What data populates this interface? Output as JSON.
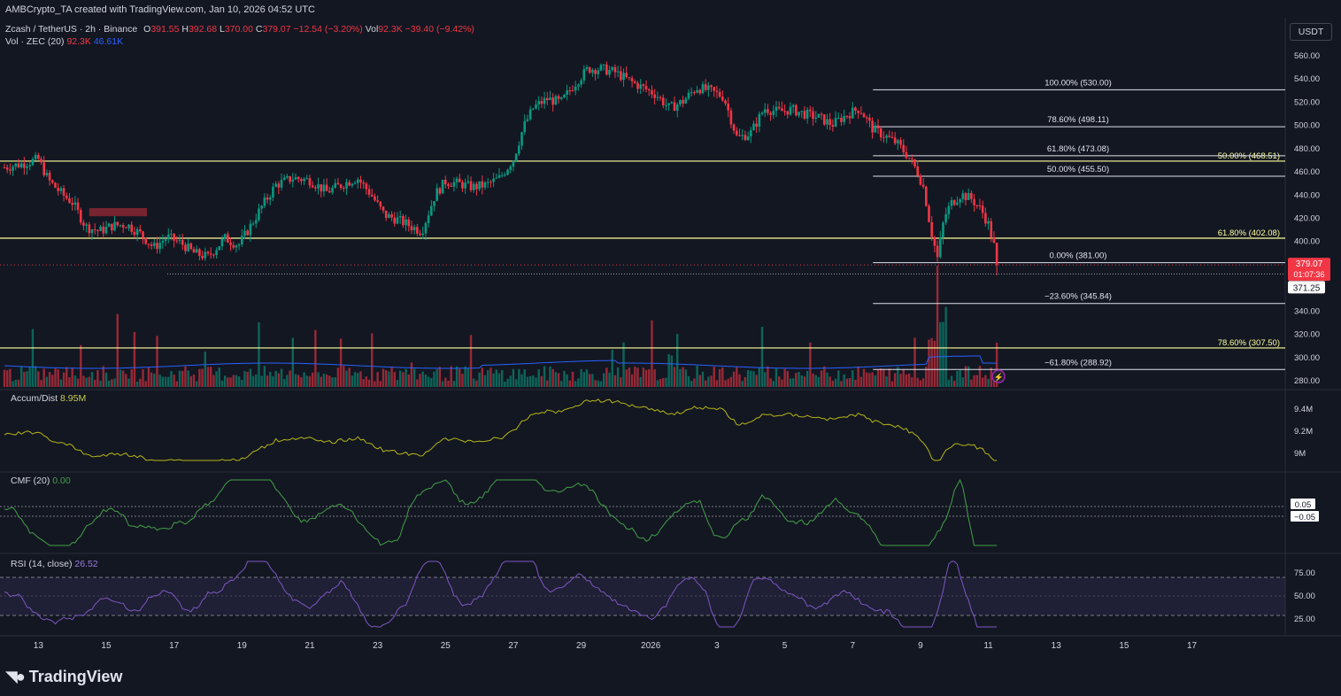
{
  "header": {
    "watermark": "AMBCrypto_TA created with TradingView.com, Jan 10, 2026 04:52 UTC",
    "symbol": "Zcash / TetherUS · 2h · Binance",
    "ohlc": [
      {
        "label": "O",
        "value": "391.55"
      },
      {
        "label": "H",
        "value": "392.68"
      },
      {
        "label": "L",
        "value": "370.00"
      },
      {
        "label": "C",
        "value": "379.07"
      }
    ],
    "change": "−12.54 (−3.20%)",
    "vol_label": "Vol",
    "vol_value": "92.3K",
    "vol_change": "−39.40 (−9.42%)",
    "vol_ma_label": "Vol · ZEC (20)",
    "vol_ma_value1": "92.3K",
    "vol_ma_value2": "46.61K"
  },
  "currency_button": "USDT",
  "branding": "TradingView",
  "colors": {
    "background": "#131722",
    "up": "#089981",
    "down": "#f23645",
    "fib_white": "#e0e3eb",
    "fib_yellow": "#ffff99",
    "volume_ma": "#2962ff",
    "accum_dist": "#b5b517",
    "cmf": "#43a047",
    "rsi": "#7e57c2",
    "price_label": "#f23645"
  },
  "chart_data": {
    "type": "candlestick",
    "symbol": "ZEC/USDT",
    "interval": "2h",
    "exchange": "Binance",
    "x_tick_labels": [
      "13",
      "15",
      "17",
      "19",
      "21",
      "23",
      "25",
      "27",
      "29",
      "2026",
      "3",
      "5",
      "7",
      "9",
      "11",
      "13",
      "15",
      "17"
    ],
    "price_axis": {
      "ticks": [
        "560.00",
        "540.00",
        "520.00",
        "500.00",
        "480.00",
        "460.00",
        "440.00",
        "420.00",
        "400.00",
        "380.00",
        "360.00",
        "340.00",
        "320.00",
        "300.00",
        "280.00"
      ],
      "range": [
        275,
        568
      ]
    },
    "price_anchors": [
      {
        "day": 12.0,
        "price": 463
      },
      {
        "day": 12.5,
        "price": 466
      },
      {
        "day": 13.0,
        "price": 470
      },
      {
        "day": 13.3,
        "price": 452
      },
      {
        "day": 13.7,
        "price": 440
      },
      {
        "day": 14.0,
        "price": 433
      },
      {
        "day": 14.4,
        "price": 412
      },
      {
        "day": 14.8,
        "price": 408
      },
      {
        "day": 15.2,
        "price": 413
      },
      {
        "day": 15.6,
        "price": 414
      },
      {
        "day": 16.0,
        "price": 406
      },
      {
        "day": 16.4,
        "price": 394
      },
      {
        "day": 16.8,
        "price": 403
      },
      {
        "day": 17.2,
        "price": 398
      },
      {
        "day": 17.6,
        "price": 389
      },
      {
        "day": 18.0,
        "price": 386
      },
      {
        "day": 18.5,
        "price": 402
      },
      {
        "day": 18.9,
        "price": 396
      },
      {
        "day": 19.2,
        "price": 410
      },
      {
        "day": 19.6,
        "price": 430
      },
      {
        "day": 20.0,
        "price": 448
      },
      {
        "day": 20.5,
        "price": 454
      },
      {
        "day": 21.0,
        "price": 452
      },
      {
        "day": 21.5,
        "price": 442
      },
      {
        "day": 22.0,
        "price": 449
      },
      {
        "day": 22.4,
        "price": 454
      },
      {
        "day": 22.8,
        "price": 440
      },
      {
        "day": 23.2,
        "price": 422
      },
      {
        "day": 23.6,
        "price": 418
      },
      {
        "day": 24.0,
        "price": 412
      },
      {
        "day": 24.3,
        "price": 408
      },
      {
        "day": 24.7,
        "price": 440
      },
      {
        "day": 25.0,
        "price": 451
      },
      {
        "day": 25.4,
        "price": 449
      },
      {
        "day": 25.8,
        "price": 446
      },
      {
        "day": 26.2,
        "price": 448
      },
      {
        "day": 26.6,
        "price": 454
      },
      {
        "day": 27.0,
        "price": 470
      },
      {
        "day": 27.3,
        "price": 498
      },
      {
        "day": 27.6,
        "price": 515
      },
      {
        "day": 28.0,
        "price": 522
      },
      {
        "day": 28.4,
        "price": 519
      },
      {
        "day": 28.8,
        "price": 535
      },
      {
        "day": 29.2,
        "price": 548
      },
      {
        "day": 29.6,
        "price": 548
      },
      {
        "day": 30.0,
        "price": 545
      },
      {
        "day": 30.4,
        "price": 538
      },
      {
        "day": 30.8,
        "price": 532
      },
      {
        "day": 31.2,
        "price": 526
      },
      {
        "day": 31.6,
        "price": 514
      },
      {
        "day": 32.0,
        "price": 520
      },
      {
        "day": 32.4,
        "price": 532
      },
      {
        "day": 32.8,
        "price": 529
      },
      {
        "day": 33.2,
        "price": 524
      },
      {
        "day": 33.6,
        "price": 488
      },
      {
        "day": 34.0,
        "price": 493
      },
      {
        "day": 34.4,
        "price": 514
      },
      {
        "day": 34.8,
        "price": 511
      },
      {
        "day": 35.2,
        "price": 513
      },
      {
        "day": 35.6,
        "price": 509
      },
      {
        "day": 36.0,
        "price": 506
      },
      {
        "day": 36.4,
        "price": 500
      },
      {
        "day": 36.8,
        "price": 508
      },
      {
        "day": 37.2,
        "price": 514
      },
      {
        "day": 37.6,
        "price": 496
      },
      {
        "day": 37.9,
        "price": 491
      },
      {
        "day": 38.3,
        "price": 484
      },
      {
        "day": 38.6,
        "price": 474
      },
      {
        "day": 38.9,
        "price": 460
      },
      {
        "day": 39.1,
        "price": 445
      },
      {
        "day": 39.3,
        "price": 410
      },
      {
        "day": 39.5,
        "price": 385
      },
      {
        "day": 39.7,
        "price": 420
      },
      {
        "day": 39.9,
        "price": 432
      },
      {
        "day": 40.2,
        "price": 440
      },
      {
        "day": 40.5,
        "price": 436
      },
      {
        "day": 40.8,
        "price": 426
      },
      {
        "day": 41.0,
        "price": 414
      },
      {
        "day": 41.2,
        "price": 392
      },
      {
        "day": 41.3,
        "price": 379
      }
    ],
    "last_price": "379.07",
    "last_price_countdown": "01:07:36",
    "marked_level": "371.25",
    "fib_retracement_recent": [
      {
        "label": "100.00% (530.00)",
        "price": 530.0
      },
      {
        "label": "78.60% (498.11)",
        "price": 498.11
      },
      {
        "label": "61.80% (473.08)",
        "price": 473.08
      },
      {
        "label": "50.00% (455.50)",
        "price": 455.5
      },
      {
        "label": "0.00% (381.00)",
        "price": 381.0
      },
      {
        "label": "−23.60% (345.84)",
        "price": 345.84
      },
      {
        "label": "−61.80% (288.92)",
        "price": 288.92
      }
    ],
    "fib_levels_long": [
      {
        "label": "50.00% (468.51)",
        "price": 468.51
      },
      {
        "label": "61.80% (402.08)",
        "price": 402.08
      },
      {
        "label": "78.60% (307.50)",
        "price": 307.5
      }
    ],
    "volume_ma_length": 20,
    "accum_dist": {
      "label": "Accum/Dist",
      "value": "8.95M",
      "axis_ticks": [
        "9.4M",
        "9.2M",
        "9M"
      ]
    },
    "cmf": {
      "label": "CMF (20)",
      "value": "0.00",
      "axis_labels": [
        "0.05",
        "−0.05"
      ]
    },
    "rsi": {
      "label": "RSI (14, close)",
      "value": "26.52",
      "axis_ticks": [
        "75.00",
        "50.00",
        "25.00"
      ],
      "upper": 70,
      "lower": 30
    }
  }
}
